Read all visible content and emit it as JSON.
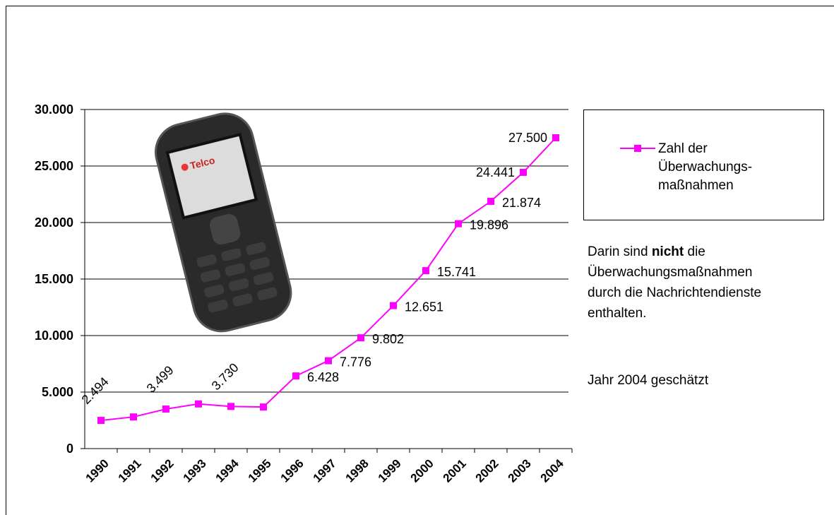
{
  "chart_data": {
    "type": "line",
    "categories": [
      "1990",
      "1991",
      "1992",
      "1993",
      "1994",
      "1995",
      "1996",
      "1997",
      "1998",
      "1999",
      "2000",
      "2001",
      "2002",
      "2003",
      "2004"
    ],
    "series": [
      {
        "name": "Zahl der Überwachungs-maßnahmen",
        "color": "#ff00ff",
        "values": [
          2494,
          2800,
          3499,
          3950,
          3730,
          3680,
          6428,
          7776,
          9802,
          12651,
          15741,
          19896,
          21874,
          24441,
          27500
        ],
        "value_labels": [
          "2.494",
          null,
          "3.499",
          null,
          "3.730",
          null,
          "6.428",
          "7.776",
          "9.802",
          "12.651",
          "15.741",
          "19.896",
          "21.874",
          "24.441",
          "27.500"
        ]
      }
    ],
    "ylim": [
      0,
      30000
    ],
    "yticks": [
      {
        "value": 0,
        "label": "0"
      },
      {
        "value": 5000,
        "label": "5.000"
      },
      {
        "value": 10000,
        "label": "10.000"
      },
      {
        "value": 15000,
        "label": "15.000"
      },
      {
        "value": 20000,
        "label": "20.000"
      },
      {
        "value": 25000,
        "label": "25.000"
      },
      {
        "value": 30000,
        "label": "30.000"
      }
    ],
    "grid": true,
    "legend": "right",
    "phone_screen_text": "Telco",
    "note": {
      "before": "Darin sind ",
      "bold": "nicht",
      "after": " die Überwachungsmaßnahmen durch die Nachrichtendienste enthalten."
    },
    "note2": "Jahr 2004 geschätzt"
  }
}
